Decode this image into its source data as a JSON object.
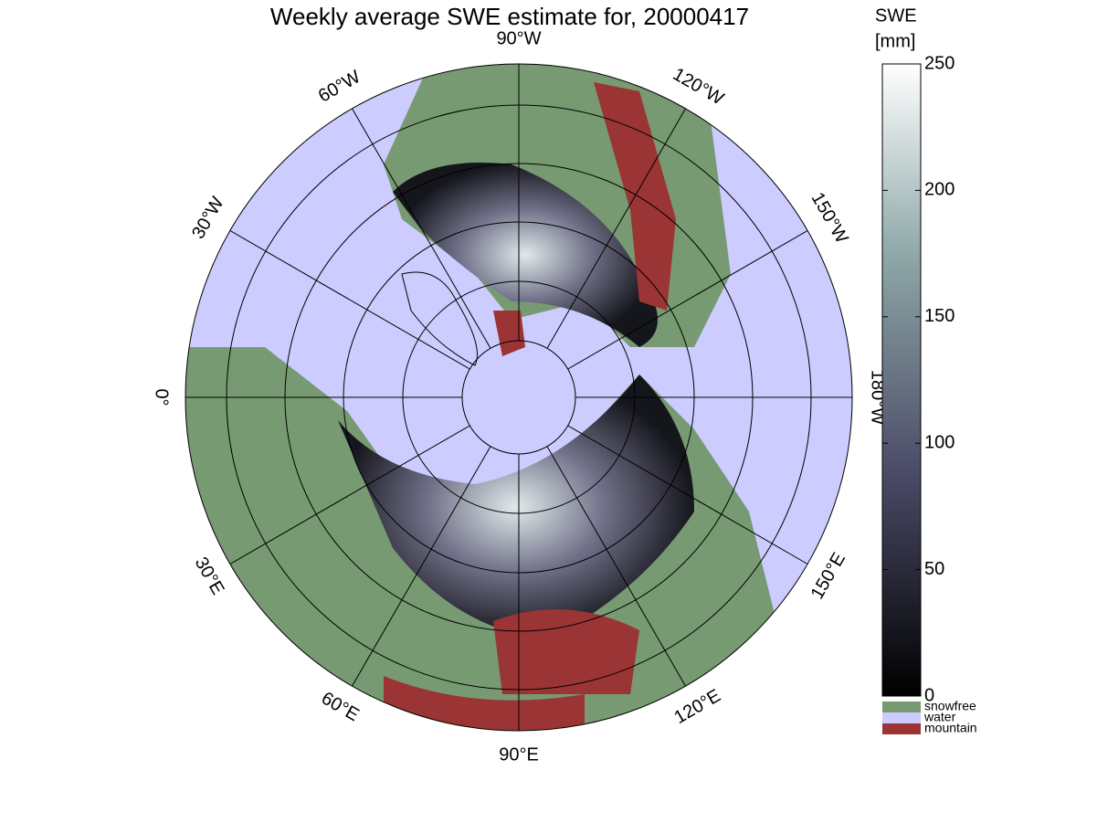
{
  "title": "Weekly average SWE estimate for, 20000417",
  "longitude_labels": [
    "0°",
    "30°E",
    "60°E",
    "90°E",
    "120°E",
    "150°E",
    "180°W",
    "150°W",
    "120°W",
    "90°W",
    "60°W",
    "30°W"
  ],
  "colorbar": {
    "label": [
      "SWE",
      "[mm]"
    ],
    "range": [
      0,
      250
    ],
    "ticks": [
      0,
      50,
      100,
      150,
      200,
      250
    ]
  },
  "legend": [
    {
      "name": "snowfree",
      "color": "#779a72"
    },
    {
      "name": "water",
      "color": "#ccccff"
    },
    {
      "name": "mountain",
      "color": "#9b3434"
    }
  ]
}
